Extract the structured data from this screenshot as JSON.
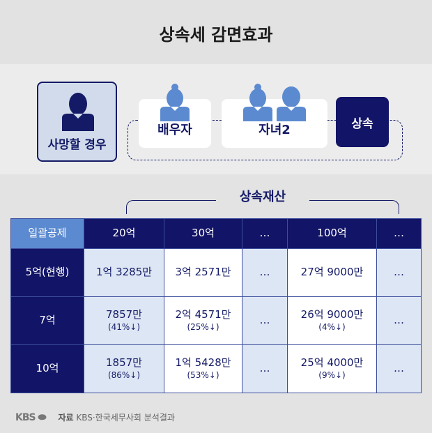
{
  "title": "상속세 감면효과",
  "diagram": {
    "deceased": "사망할 경우",
    "spouse": "배우자",
    "children": "자녀2",
    "inheritance": "상속"
  },
  "bracket_label": "상속재산",
  "table": {
    "corner": "일괄공제",
    "columns": [
      "20억",
      "30억",
      "…",
      "100억",
      "…"
    ],
    "rows": [
      {
        "label": "5억(현행)",
        "cells": [
          {
            "v": "1억 3285만",
            "p": ""
          },
          {
            "v": "3억 2571만",
            "p": ""
          },
          {
            "v": "…",
            "p": ""
          },
          {
            "v": "27억 9000만",
            "p": ""
          },
          {
            "v": "…",
            "p": ""
          }
        ]
      },
      {
        "label": "7억",
        "cells": [
          {
            "v": "7857만",
            "p": "(41%↓)"
          },
          {
            "v": "2억 4571만",
            "p": "(25%↓)"
          },
          {
            "v": "…",
            "p": ""
          },
          {
            "v": "26억 9000만",
            "p": "(4%↓)"
          },
          {
            "v": "…",
            "p": ""
          }
        ]
      },
      {
        "label": "10억",
        "cells": [
          {
            "v": "1857만",
            "p": "(86%↓)"
          },
          {
            "v": "1억 5428만",
            "p": "(53%↓)"
          },
          {
            "v": "…",
            "p": ""
          },
          {
            "v": "25억 4000만",
            "p": "(9%↓)"
          },
          {
            "v": "…",
            "p": ""
          }
        ]
      }
    ]
  },
  "footer": {
    "logo": "KBS",
    "source_label": "자료",
    "source": "KBS·한국세무사회 분석결과"
  },
  "colors": {
    "navy": "#121467",
    "accent_blue": "#5b8ad0",
    "light_blue": "#dde6f4"
  }
}
